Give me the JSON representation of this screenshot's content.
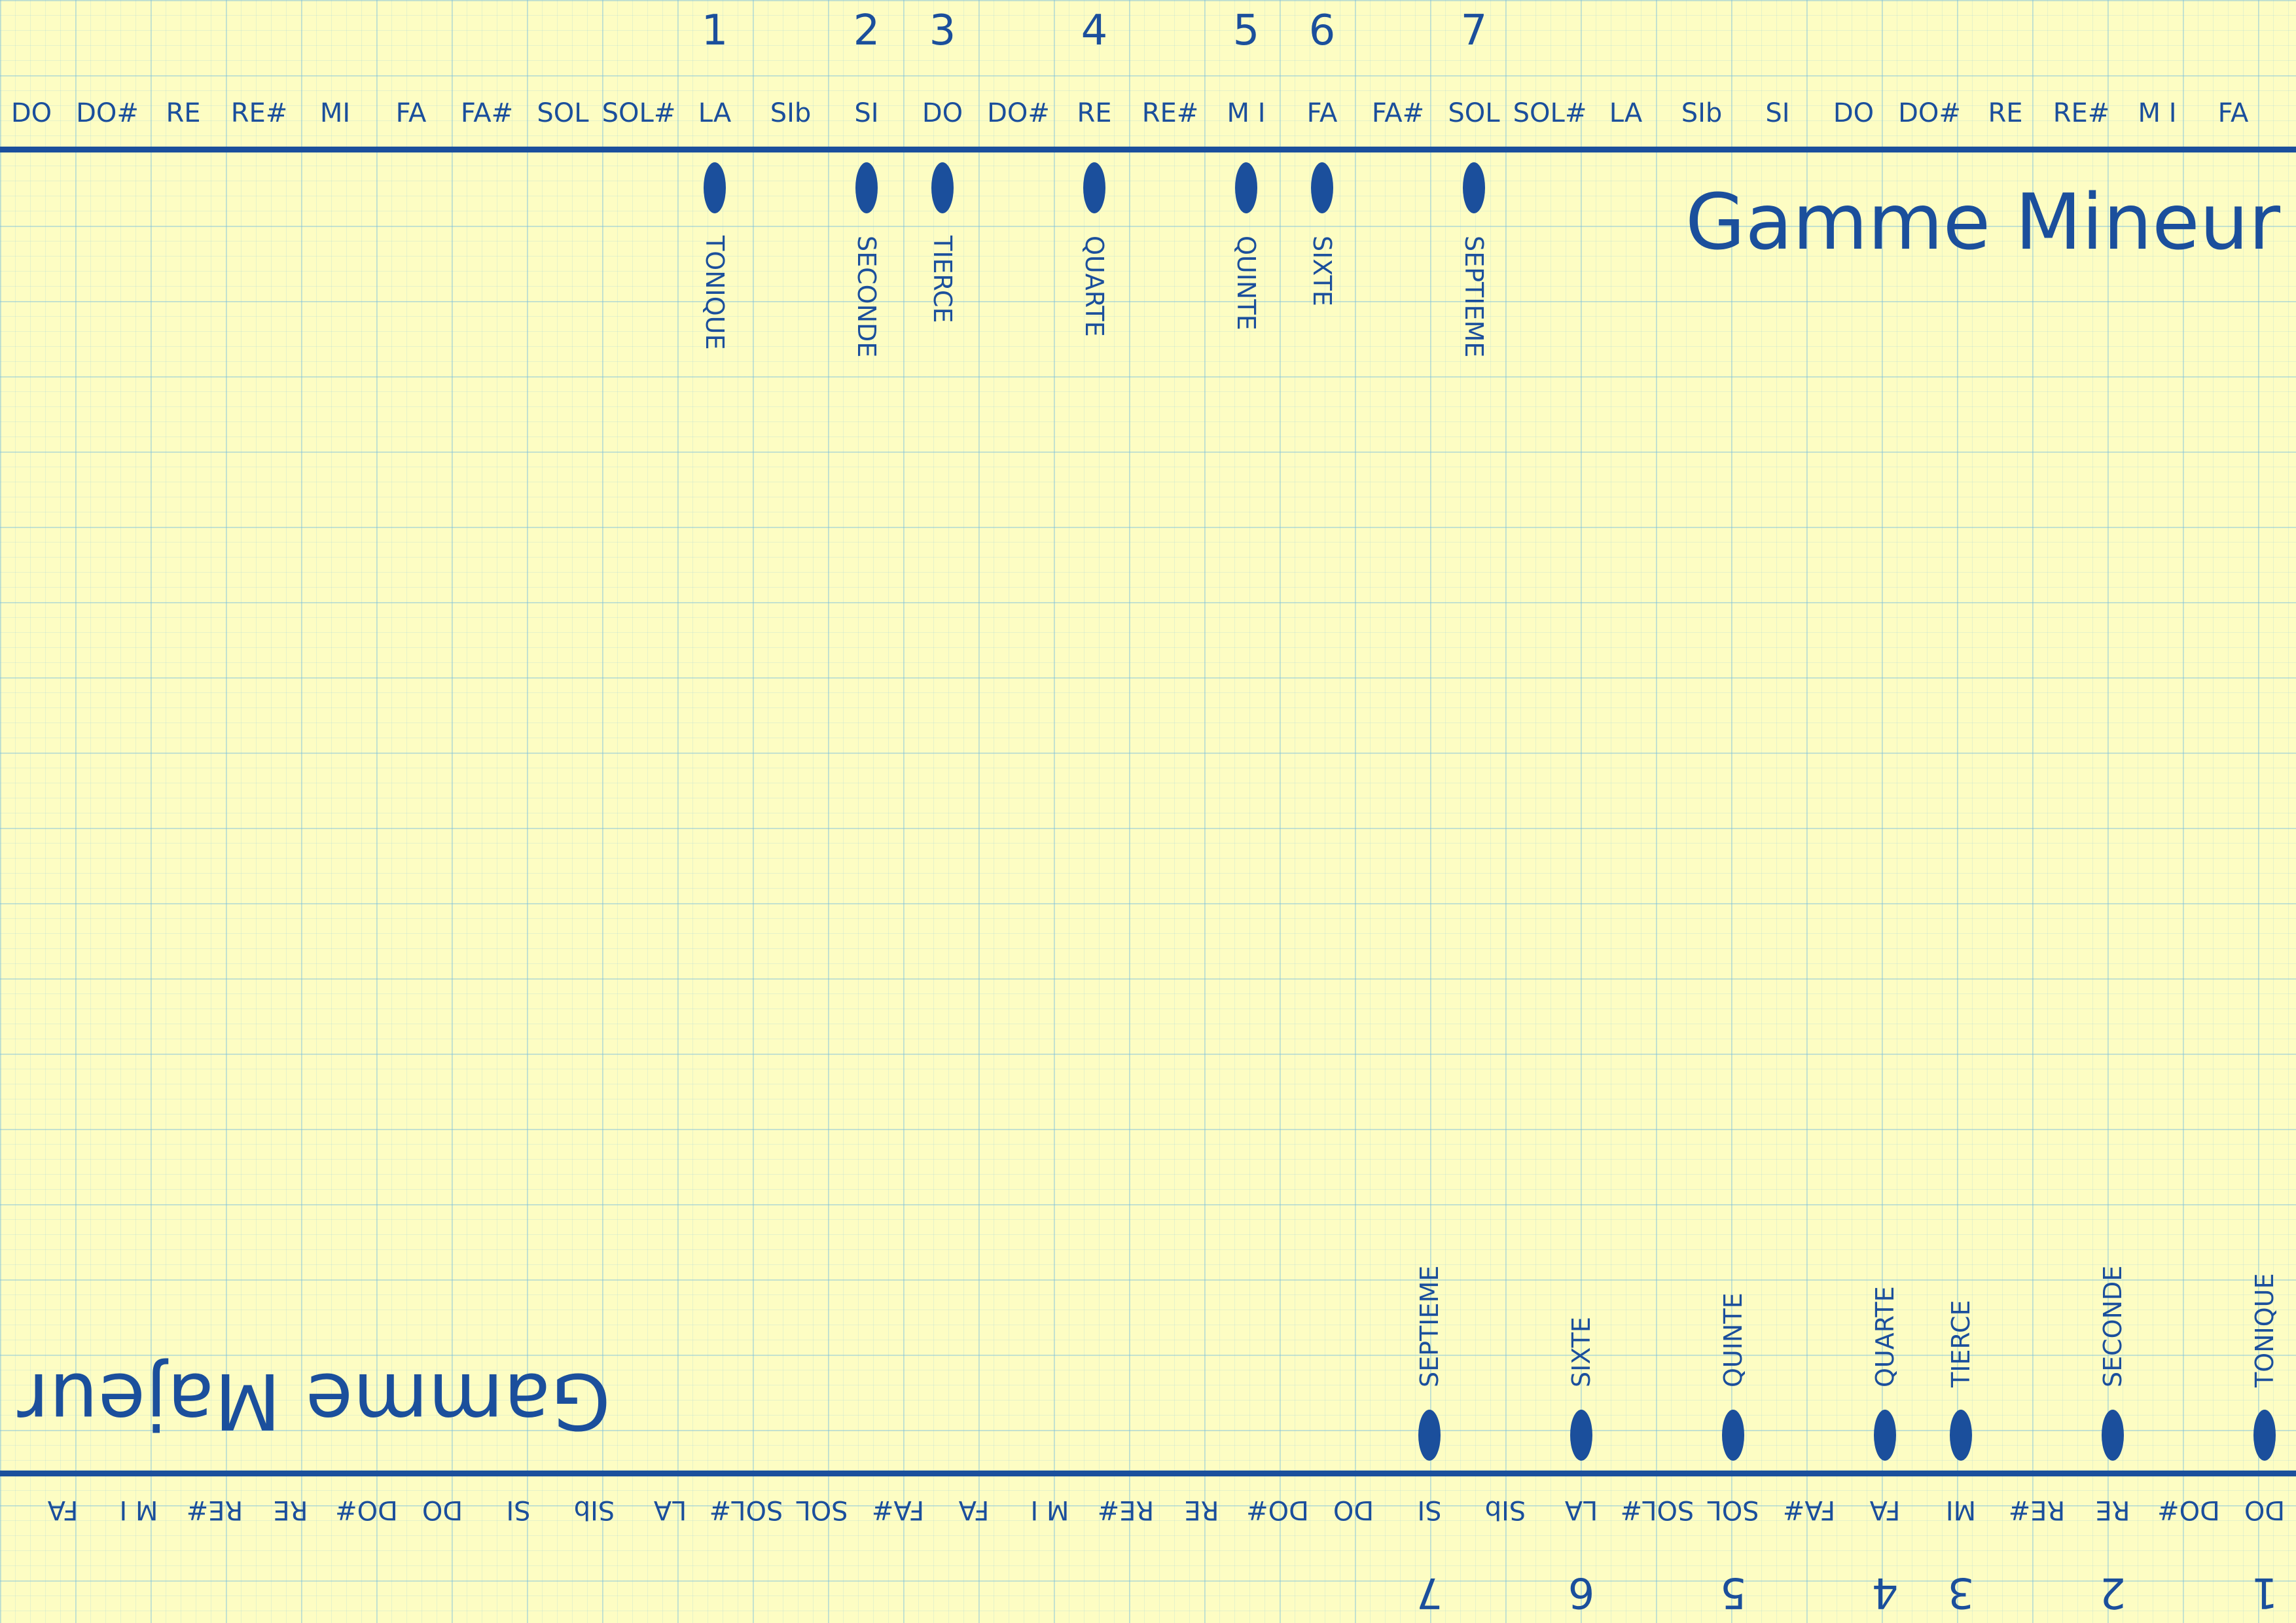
{
  "minor": {
    "title": "Gamme Mineur",
    "notes": [
      "DO",
      "DO#",
      "RE",
      "RE#",
      "MI",
      "FA",
      "FA#",
      "SOL",
      "SOL#",
      "LA",
      "SIb",
      "SI",
      "DO",
      "DO#",
      "RE",
      "RE#",
      "M I",
      "FA",
      "FA#",
      "SOL",
      "SOL#",
      "LA",
      "SIb",
      "SI",
      "DO",
      "DO#",
      "RE",
      "RE#",
      "M I",
      "FA"
    ],
    "degrees": [
      {
        "num": "1",
        "role": "TONIQUE",
        "note_index": 9
      },
      {
        "num": "2",
        "role": "SECONDE",
        "note_index": 11
      },
      {
        "num": "3",
        "role": "TIERCE",
        "note_index": 12
      },
      {
        "num": "4",
        "role": "QUARTE",
        "note_index": 14
      },
      {
        "num": "5",
        "role": "QUINTE",
        "note_index": 16
      },
      {
        "num": "6",
        "role": "SIXTE",
        "note_index": 17
      },
      {
        "num": "7",
        "role": "SEPTIEME",
        "note_index": 19
      }
    ]
  },
  "major": {
    "title": "Gamme Majeur",
    "notes": [
      "DO",
      "DO#",
      "RE",
      "RE#",
      "MI",
      "FA",
      "FA#",
      "SOL",
      "SOL#",
      "LA",
      "SIb",
      "SI",
      "DO",
      "DO#",
      "RE",
      "RE#",
      "M I",
      "FA",
      "FA#",
      "SOL",
      "SOL#",
      "LA",
      "SIb",
      "SI",
      "DO",
      "DO#",
      "RE",
      "RE#",
      "M I",
      "FA"
    ],
    "degrees": [
      {
        "num": "1",
        "role": "TONIQUE",
        "note_index": 0
      },
      {
        "num": "2",
        "role": "SECONDE",
        "note_index": 2
      },
      {
        "num": "3",
        "role": "TIERCE",
        "note_index": 4
      },
      {
        "num": "4",
        "role": "QUARTE",
        "note_index": 5
      },
      {
        "num": "5",
        "role": "QUINTE",
        "note_index": 7
      },
      {
        "num": "6",
        "role": "SIXTE",
        "note_index": 9
      },
      {
        "num": "7",
        "role": "SEPTIEME",
        "note_index": 11
      }
    ]
  },
  "colors": {
    "ink": "#1b4f9c",
    "paper": "#fdfdc3",
    "grid": "#8cc8e1"
  }
}
